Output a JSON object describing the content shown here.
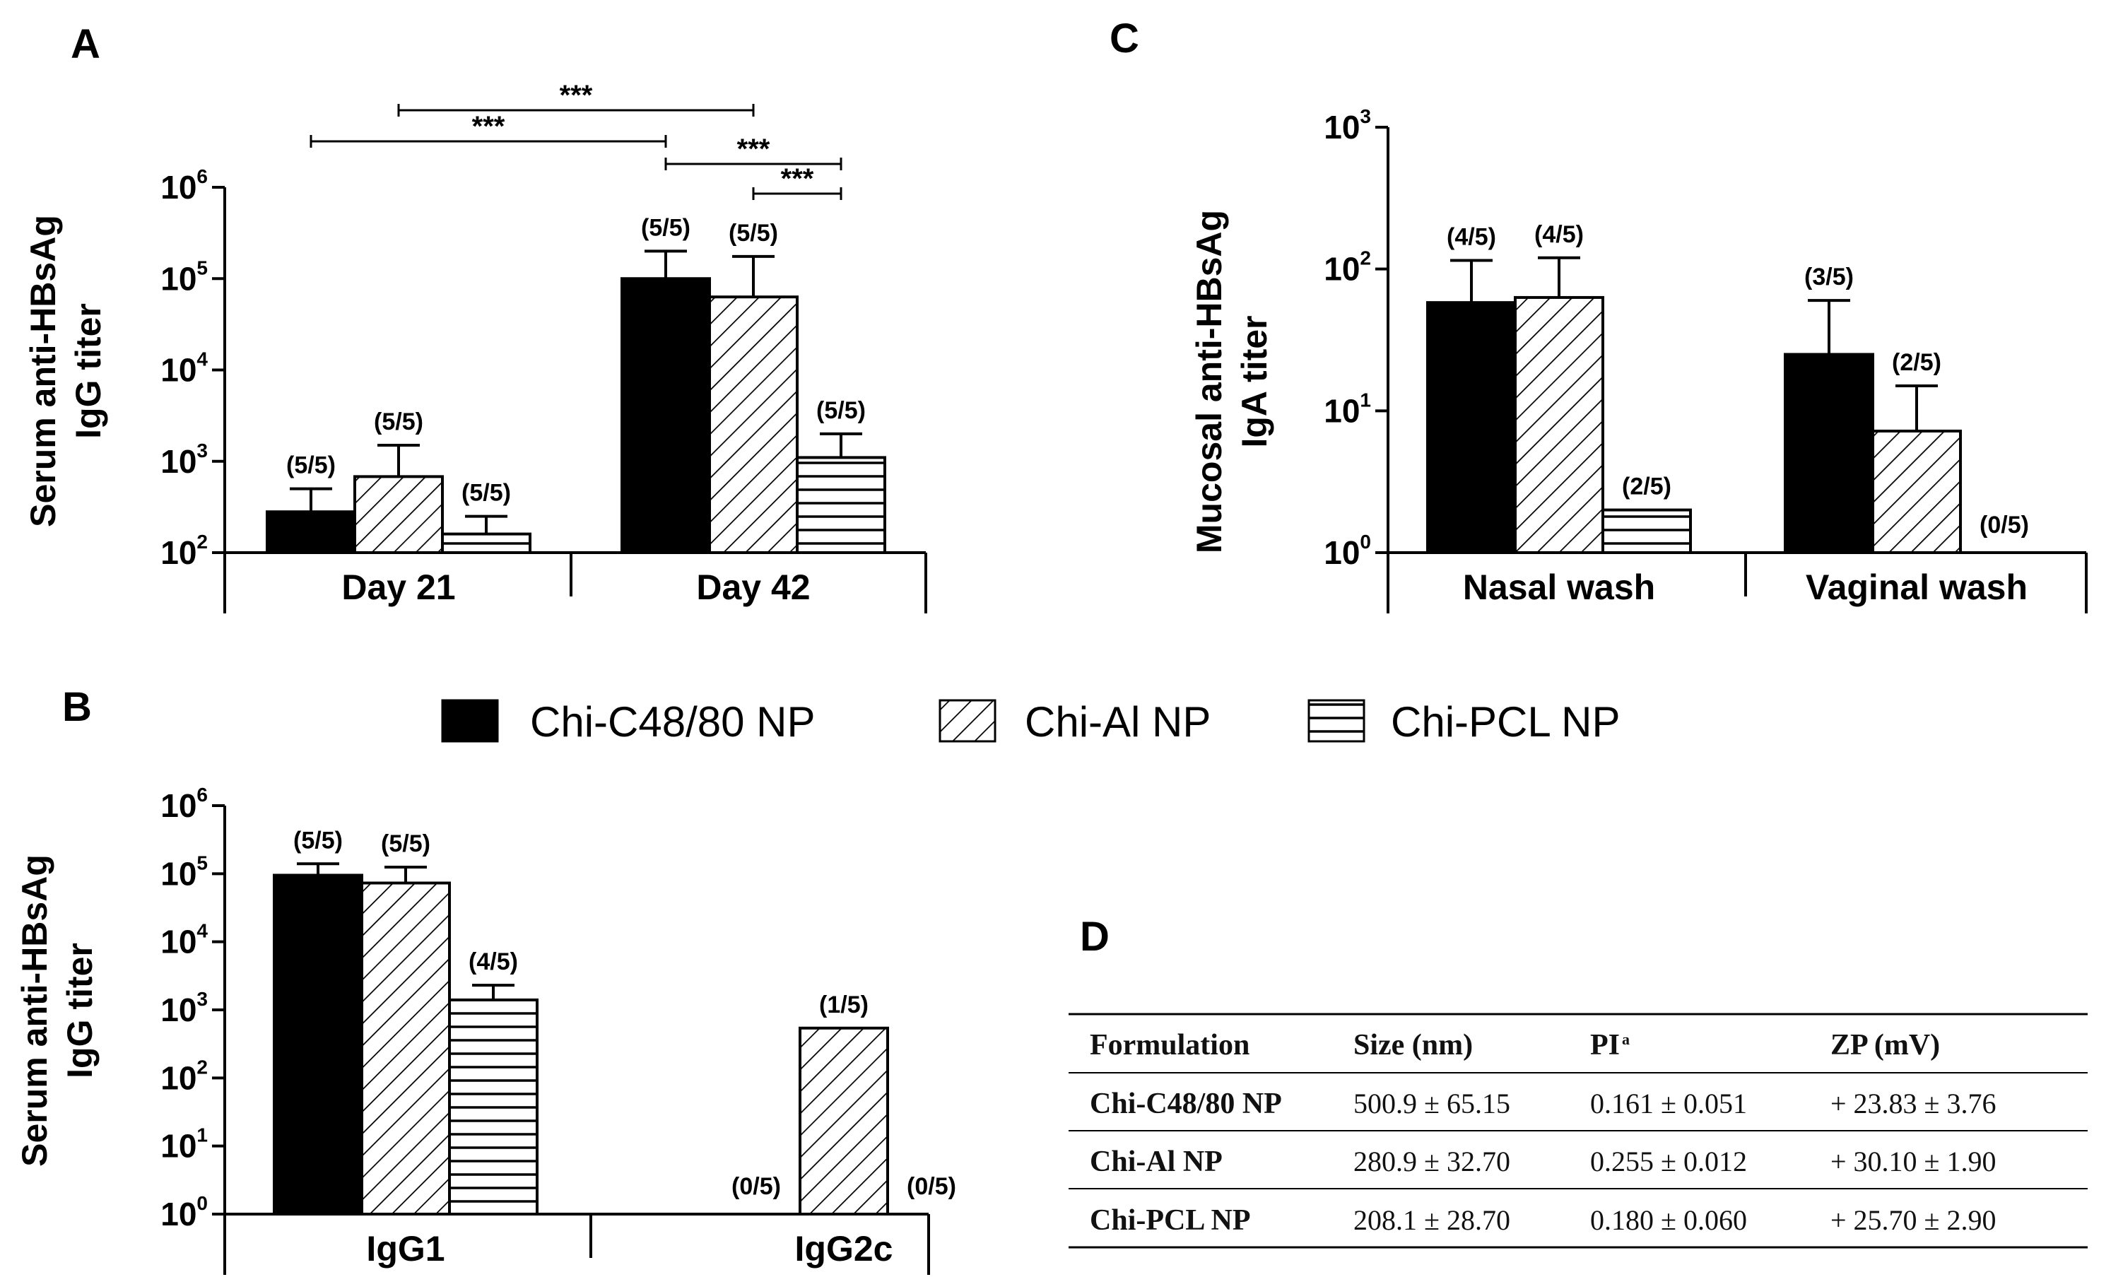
{
  "colors": {
    "chi_c48_80": "#000000",
    "chi_al": "#ffffff",
    "chi_pcl": "#ffffff",
    "ink": "#000000"
  },
  "legend": [
    {
      "name": "Chi-C48/80 NP",
      "pattern": "solid"
    },
    {
      "name": "Chi-Al NP",
      "pattern": "diagonal"
    },
    {
      "name": "Chi-PCL NP",
      "pattern": "horizontal"
    }
  ],
  "chart_data": [
    {
      "panel": "A",
      "type": "bar",
      "yscale": "log",
      "ylabel_lines": [
        "Serum anti-HBsAg",
        "IgG titer"
      ],
      "ylim": [
        100,
        1000000
      ],
      "yticks": [
        {
          "base": "10",
          "exp": "2"
        },
        {
          "base": "10",
          "exp": "3"
        },
        {
          "base": "10",
          "exp": "4"
        },
        {
          "base": "10",
          "exp": "5"
        },
        {
          "base": "10",
          "exp": "6"
        }
      ],
      "categories": [
        "Day 21",
        "Day 42"
      ],
      "series": [
        {
          "name": "Chi-C48/80 NP",
          "pattern": "solid",
          "values": [
            280,
            100000
          ],
          "errors_upper": [
            500,
            200000
          ],
          "labels": [
            "(5/5)",
            "(5/5)"
          ]
        },
        {
          "name": "Chi-Al NP",
          "pattern": "diagonal",
          "values": [
            680,
            63000
          ],
          "errors_upper": [
            1500,
            175000
          ],
          "labels": [
            "(5/5)",
            "(5/5)"
          ]
        },
        {
          "name": "Chi-PCL NP",
          "pattern": "horizontal",
          "values": [
            160,
            1100
          ],
          "errors_upper": [
            250,
            2000
          ],
          "labels": [
            "(5/5)",
            "(5/5)"
          ]
        }
      ],
      "significance": [
        {
          "label": "***",
          "from": [
            0,
            0
          ],
          "to": [
            1,
            0
          ]
        },
        {
          "label": "***",
          "from": [
            0,
            1
          ],
          "to": [
            1,
            1
          ]
        },
        {
          "label": "***",
          "from": [
            1,
            0
          ],
          "to": [
            1,
            2
          ]
        },
        {
          "label": "***",
          "from": [
            1,
            1
          ],
          "to": [
            1,
            2
          ]
        }
      ]
    },
    {
      "panel": "B",
      "type": "bar",
      "yscale": "log",
      "ylabel_lines": [
        "Serum anti-HBsAg",
        "IgG titer"
      ],
      "ylim": [
        1,
        1000000
      ],
      "yticks": [
        {
          "base": "10",
          "exp": "0"
        },
        {
          "base": "10",
          "exp": "1"
        },
        {
          "base": "10",
          "exp": "2"
        },
        {
          "base": "10",
          "exp": "3"
        },
        {
          "base": "10",
          "exp": "4"
        },
        {
          "base": "10",
          "exp": "5"
        },
        {
          "base": "10",
          "exp": "6"
        }
      ],
      "categories": [
        "IgG1",
        "IgG2c"
      ],
      "series": [
        {
          "name": "Chi-C48/80 NP",
          "pattern": "solid",
          "values": [
            95000,
            null
          ],
          "errors_upper": [
            140000,
            null
          ],
          "labels": [
            "(5/5)",
            "(0/5)"
          ]
        },
        {
          "name": "Chi-Al NP",
          "pattern": "diagonal",
          "values": [
            73000,
            540
          ],
          "errors_upper": [
            125000,
            null
          ],
          "labels": [
            "(5/5)",
            "(1/5)"
          ]
        },
        {
          "name": "Chi-PCL NP",
          "pattern": "horizontal",
          "values": [
            1400,
            null
          ],
          "errors_upper": [
            2300,
            null
          ],
          "labels": [
            "(4/5)",
            "(0/5)"
          ]
        }
      ]
    },
    {
      "panel": "C",
      "type": "bar",
      "yscale": "log",
      "ylabel_lines": [
        "Mucosal anti-HBsAg",
        "IgA titer"
      ],
      "ylim": [
        1,
        1000
      ],
      "yticks": [
        {
          "base": "10",
          "exp": "0"
        },
        {
          "base": "10",
          "exp": "1"
        },
        {
          "base": "10",
          "exp": "2"
        },
        {
          "base": "10",
          "exp": "3"
        }
      ],
      "categories": [
        "Nasal wash",
        "Vaginal wash"
      ],
      "series": [
        {
          "name": "Chi-C48/80 NP",
          "pattern": "solid",
          "values": [
            58,
            25
          ],
          "errors_upper": [
            115,
            60
          ],
          "labels": [
            "(4/5)",
            "(3/5)"
          ]
        },
        {
          "name": "Chi-Al NP",
          "pattern": "diagonal",
          "values": [
            63,
            7.2
          ],
          "errors_upper": [
            120,
            15
          ],
          "labels": [
            "(4/5)",
            "(2/5)"
          ]
        },
        {
          "name": "Chi-PCL NP",
          "pattern": "horizontal",
          "values": [
            2,
            null
          ],
          "errors_upper": [
            null,
            null
          ],
          "labels": [
            "(2/5)",
            "(0/5)"
          ]
        }
      ]
    }
  ],
  "table": {
    "panel": "D",
    "headers": [
      {
        "text": "Formulation",
        "sup": ""
      },
      {
        "text": "Size (nm)",
        "sup": ""
      },
      {
        "text": "PI",
        "sup": "a"
      },
      {
        "text": "ZP (mV)",
        "sup": ""
      }
    ],
    "rows": [
      [
        "Chi-C48/80 NP",
        "500.9 ± 65.15",
        "0.161 ± 0.051",
        "+ 23.83 ± 3.76"
      ],
      [
        "Chi-Al NP",
        "280.9 ± 32.70",
        "0.255 ± 0.012",
        "+ 30.10 ± 1.90"
      ],
      [
        "Chi-PCL NP",
        "208.1 ± 28.70",
        "0.180 ± 0.060",
        "+ 25.70 ± 2.90"
      ]
    ]
  }
}
